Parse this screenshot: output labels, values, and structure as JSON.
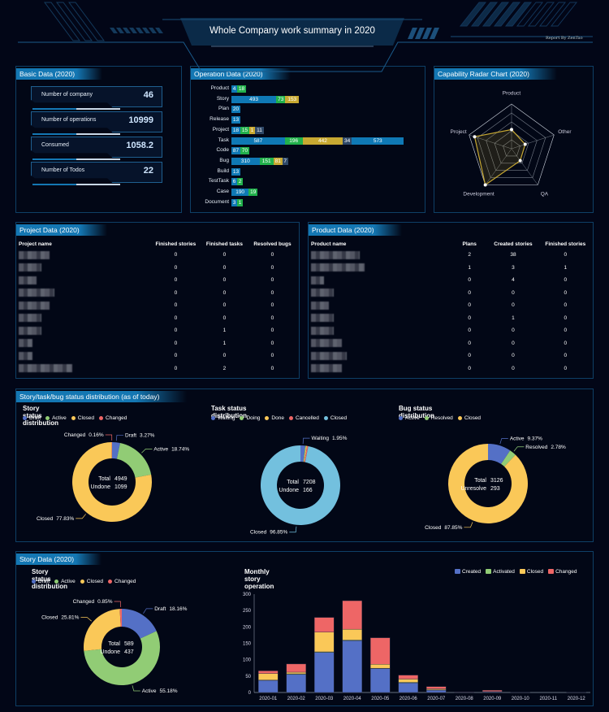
{
  "header": {
    "title": "Whole Company work summary in 2020",
    "report_by": "Report By ZenTao"
  },
  "basic": {
    "title": "Basic Data (2020)",
    "items": [
      {
        "label": "Number of company",
        "value": "46"
      },
      {
        "label": "Number of operations",
        "value": "10999"
      },
      {
        "label": "Consumed",
        "value": "1058.2"
      },
      {
        "label": "Number of Todos",
        "value": "22"
      }
    ]
  },
  "operation": {
    "title": "Operation Data (2020)",
    "colors": [
      "#0f79b5",
      "#22b14c",
      "#c8a932",
      "#2e4868",
      "#0f79b5"
    ],
    "rows": [
      {
        "label": "Product",
        "values": [
          4,
          18
        ]
      },
      {
        "label": "Story",
        "values": [
          493,
          73,
          153
        ]
      },
      {
        "label": "Plan",
        "values": [
          20
        ]
      },
      {
        "label": "Release",
        "values": [
          13
        ]
      },
      {
        "label": "Project",
        "values": [
          18,
          15,
          1,
          11
        ]
      },
      {
        "label": "Task",
        "values": [
          587,
          196,
          442,
          34,
          573
        ]
      },
      {
        "label": "Code",
        "values": [
          87,
          70
        ]
      },
      {
        "label": "Bug",
        "values": [
          310,
          151,
          81,
          7
        ]
      },
      {
        "label": "Build",
        "values": [
          13
        ]
      },
      {
        "label": "TestTask",
        "values": [
          6,
          2
        ]
      },
      {
        "label": "Case",
        "values": [
          190,
          19
        ]
      },
      {
        "label": "Document",
        "values": [
          3,
          1
        ]
      }
    ]
  },
  "radar": {
    "title": "Capability Radar Chart (2020)",
    "color": "#c8a932",
    "indicators": [
      {
        "name": "Product",
        "value": 0.43
      },
      {
        "name": "Other",
        "value": 0.32
      },
      {
        "name": "QA",
        "value": 0.33
      },
      {
        "name": "Development",
        "value": 1.0
      },
      {
        "name": "Project",
        "value": 0.87
      }
    ]
  },
  "project": {
    "title": "Project Data (2020)",
    "columns": [
      "Project name",
      "Finished stories",
      "Finished tasks",
      "Resolved bugs"
    ],
    "rows": [
      [
        0,
        0,
        0
      ],
      [
        0,
        0,
        0
      ],
      [
        0,
        0,
        0
      ],
      [
        0,
        0,
        0
      ],
      [
        0,
        0,
        0
      ],
      [
        0,
        0,
        0
      ],
      [
        0,
        1,
        0
      ],
      [
        0,
        1,
        0
      ],
      [
        0,
        0,
        0
      ],
      [
        0,
        2,
        0
      ]
    ]
  },
  "product": {
    "title": "Product Data (2020)",
    "columns": [
      "Product name",
      "Plans",
      "Created stories",
      "Finished stories"
    ],
    "rows": [
      [
        2,
        38,
        0
      ],
      [
        1,
        3,
        1
      ],
      [
        0,
        4,
        0
      ],
      [
        0,
        0,
        0
      ],
      [
        0,
        0,
        0
      ],
      [
        0,
        1,
        0
      ],
      [
        0,
        0,
        0
      ],
      [
        0,
        0,
        0
      ],
      [
        0,
        0,
        0
      ],
      [
        0,
        0,
        0
      ]
    ]
  },
  "status": {
    "title": "Story/task/bug status distribution (as of today)",
    "charts": [
      {
        "title": "Story status distribution",
        "center": [
          {
            "k": "Total",
            "v": "4949"
          },
          {
            "k": "Undone",
            "v": "1099"
          }
        ],
        "slices": [
          {
            "name": "Draft",
            "pct": 3.27,
            "color": "#5470c6",
            "label": true
          },
          {
            "name": "Active",
            "pct": 18.74,
            "color": "#91cc75",
            "label": true
          },
          {
            "name": "Closed",
            "pct": 77.83,
            "color": "#fac858",
            "label": true
          },
          {
            "name": "Changed",
            "pct": 0.16,
            "color": "#ee6666",
            "label": true
          }
        ]
      },
      {
        "title": "Task status distribution",
        "center": [
          {
            "k": "Total",
            "v": "7208"
          },
          {
            "k": "Undone",
            "v": "166"
          }
        ],
        "slices": [
          {
            "name": "Waiting",
            "pct": 1.95,
            "color": "#5470c6",
            "label": true
          },
          {
            "name": "Doing",
            "pct": 0.3,
            "color": "#91cc75",
            "label": false
          },
          {
            "name": "Done",
            "pct": 0.4,
            "color": "#fac858",
            "label": false
          },
          {
            "name": "Cancelled",
            "pct": 0.5,
            "color": "#ee6666",
            "label": false
          },
          {
            "name": "Closed",
            "pct": 96.85,
            "color": "#73c0de",
            "label": true
          }
        ]
      },
      {
        "title": "Bug status distribution",
        "center": [
          {
            "k": "Total",
            "v": "3126"
          },
          {
            "k": "Unresolve",
            "v": "293"
          }
        ],
        "slices": [
          {
            "name": "Active",
            "pct": 9.37,
            "color": "#5470c6",
            "label": true
          },
          {
            "name": "Resolved",
            "pct": 2.78,
            "color": "#91cc75",
            "label": true
          },
          {
            "name": "Closed",
            "pct": 87.85,
            "color": "#fac858",
            "label": true
          }
        ]
      }
    ]
  },
  "story": {
    "title": "Story Data (2020)",
    "donut": {
      "title": "Story status distribution",
      "center": [
        {
          "k": "Total",
          "v": "589"
        },
        {
          "k": "Undone",
          "v": "437"
        }
      ],
      "slices": [
        {
          "name": "Draft",
          "pct": 18.16,
          "color": "#5470c6",
          "label": true
        },
        {
          "name": "Active",
          "pct": 55.18,
          "color": "#91cc75",
          "label": true
        },
        {
          "name": "Closed",
          "pct": 25.81,
          "color": "#fac858",
          "label": true
        },
        {
          "name": "Changed",
          "pct": 0.85,
          "color": "#ee6666",
          "label": true
        }
      ]
    }
  },
  "chart_data": {
    "type": "bar",
    "stacked": true,
    "title": "Monthly story operation",
    "categories": [
      "2020-01",
      "2020-02",
      "2020-03",
      "2020-04",
      "2020-05",
      "2020-06",
      "2020-07",
      "2020-08",
      "2020-09",
      "2020-10",
      "2020-11",
      "2020-12"
    ],
    "series": [
      {
        "name": "Created",
        "color": "#5470c6",
        "values": [
          37,
          55,
          122,
          158,
          73,
          29,
          7,
          1,
          2,
          1,
          0,
          1
        ]
      },
      {
        "name": "Activated",
        "color": "#91cc75",
        "values": [
          1,
          2,
          2,
          2,
          1,
          2,
          1,
          0,
          0,
          0,
          0,
          0
        ]
      },
      {
        "name": "Closed",
        "color": "#fac858",
        "values": [
          20,
          5,
          60,
          33,
          12,
          10,
          3,
          0,
          1,
          0,
          0,
          0
        ]
      },
      {
        "name": "Changed",
        "color": "#ee6666",
        "values": [
          8,
          25,
          45,
          87,
          81,
          12,
          7,
          1,
          4,
          0,
          0,
          0
        ]
      }
    ],
    "yticks": [
      0,
      50,
      100,
      150,
      200,
      250,
      300
    ],
    "ylim": [
      0,
      300
    ],
    "legend": "top-right",
    "grid": false
  }
}
